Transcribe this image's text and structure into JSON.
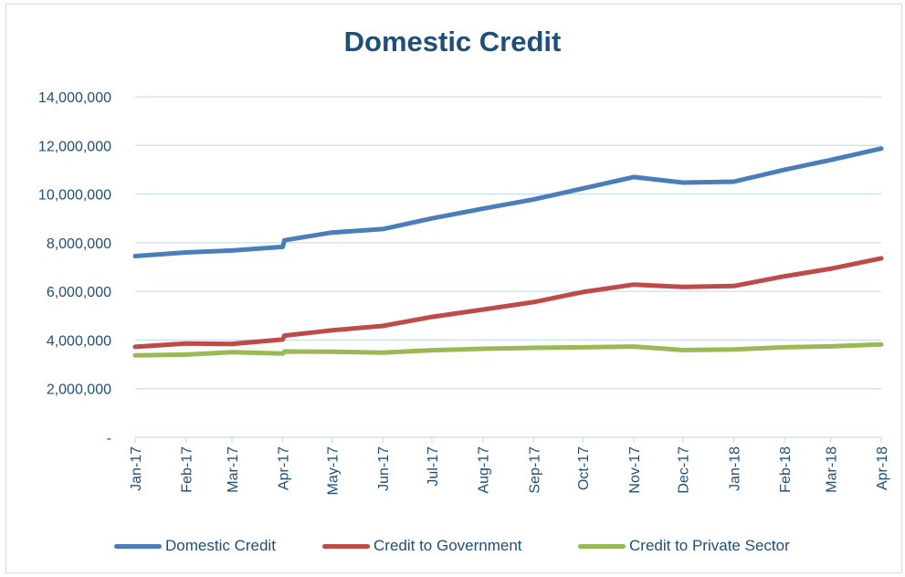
{
  "chart_data": {
    "type": "line",
    "title": "Domestic Credit",
    "xlabel": "",
    "ylabel": "",
    "ylim": [
      0,
      14000000
    ],
    "yticks": [
      0,
      2000000,
      4000000,
      6000000,
      8000000,
      10000000,
      12000000,
      14000000
    ],
    "ytick_labels": [
      "-",
      "2,000,000",
      "4,000,000",
      "6,000,000",
      "8,000,000",
      "10,000,000",
      "12,000,000",
      "14,000,000"
    ],
    "categories": [
      "Jan-17",
      "Feb-17",
      "Mar-17",
      "Apr-17",
      "May-17",
      "Jun-17",
      "Jul-17",
      "Aug-17",
      "Sep-17",
      "Oct-17",
      "Nov-17",
      "Dec-17",
      "Jan-18",
      "Feb-18",
      "Mar-18",
      "Apr-18"
    ],
    "x": [
      "2017-01-01",
      "2017-02-01",
      "2017-03-01",
      "2017-04-01",
      "2017-04-02",
      "2017-05-01",
      "2017-06-01",
      "2017-07-01",
      "2017-08-01",
      "2017-09-01",
      "2017-10-01",
      "2017-11-01",
      "2017-12-01",
      "2018-01-01",
      "2018-02-01",
      "2018-03-01",
      "2018-04-01"
    ],
    "grid": true,
    "legend_position": "bottom",
    "series": [
      {
        "name": "Domestic Credit",
        "color": "#4a7ebb",
        "values": [
          7450000,
          7600000,
          7680000,
          7830000,
          8100000,
          8420000,
          8560000,
          9000000,
          9400000,
          9780000,
          10230000,
          10700000,
          10470000,
          10510000,
          11000000,
          11400000,
          11870000
        ]
      },
      {
        "name": "Credit to Government",
        "color": "#be4b48",
        "values": [
          3720000,
          3860000,
          3840000,
          4020000,
          4180000,
          4400000,
          4580000,
          4950000,
          5250000,
          5560000,
          5970000,
          6280000,
          6180000,
          6220000,
          6620000,
          6930000,
          7360000
        ]
      },
      {
        "name": "Credit to Private Sector",
        "color": "#98b954",
        "values": [
          3370000,
          3400000,
          3500000,
          3440000,
          3530000,
          3520000,
          3480000,
          3580000,
          3640000,
          3680000,
          3700000,
          3730000,
          3590000,
          3610000,
          3700000,
          3740000,
          3820000
        ]
      }
    ]
  }
}
